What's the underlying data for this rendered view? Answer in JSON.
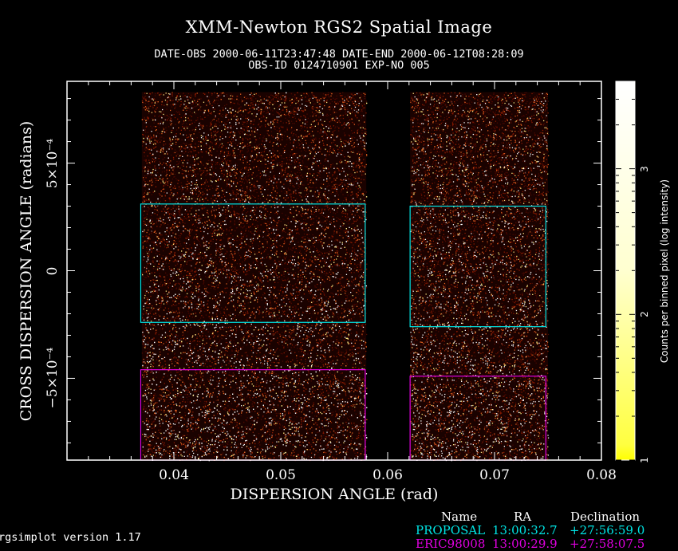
{
  "title": "XMM-Newton  RGS2 Spatial Image",
  "subtitle_line1": "DATE-OBS 2000-06-11T23:47:48   DATE-END 2000-06-12T08:28:09",
  "subtitle_line2": "OBS-ID 0124710901 EXP-NO 005",
  "version_text": "rgsimplot version 1.17",
  "chart_data": {
    "type": "heatmap",
    "title": "XMM-Newton  RGS2 Spatial Image",
    "xlabel": "DISPERSION ANGLE (rad)",
    "ylabel": "CROSS DISPERSION ANGLE (radians)",
    "xlim": [
      0.03,
      0.08
    ],
    "ylim": [
      -0.00088,
      0.00088
    ],
    "x_ticks": [
      {
        "value": 0.04,
        "label": "0.04"
      },
      {
        "value": 0.05,
        "label": "0.05"
      },
      {
        "value": 0.06,
        "label": "0.06"
      },
      {
        "value": 0.07,
        "label": "0.07"
      },
      {
        "value": 0.08,
        "label": "0.08"
      }
    ],
    "y_ticks": [
      {
        "value": -0.0005,
        "label": "−5×10⁻⁴"
      },
      {
        "value": 0,
        "label": "0"
      },
      {
        "value": 0.0005,
        "label": "5×10⁻⁴"
      }
    ],
    "data_coverage": [
      {
        "x_range": [
          0.037,
          0.058
        ],
        "y_range": [
          -0.00088,
          0.00083
        ]
      },
      {
        "x_range": [
          0.0621,
          0.075
        ],
        "y_range": [
          -0.00088,
          0.00083
        ]
      }
    ],
    "regions": [
      {
        "name": "PROPOSAL",
        "color": "#00e5e5",
        "boxes": [
          {
            "x_range": [
              0.0369,
              0.0579
            ],
            "y_range": [
              -0.00024,
              0.00031
            ]
          },
          {
            "x_range": [
              0.0621,
              0.0748
            ],
            "y_range": [
              -0.00026,
              0.0003
            ]
          }
        ]
      },
      {
        "name": "ERIC98008",
        "color": "#e000e0",
        "boxes": [
          {
            "x_range": [
              0.0369,
              0.0579
            ],
            "y_range": [
              -0.00088,
              -0.00046
            ]
          },
          {
            "x_range": [
              0.0621,
              0.0748
            ],
            "y_range": [
              -0.00088,
              -0.00049
            ]
          }
        ]
      }
    ],
    "colorbar": {
      "label": "Counts per binned pixel (log intensity)",
      "ticks": [
        {
          "value": 1,
          "label": "1"
        },
        {
          "value": 2,
          "label": "2"
        },
        {
          "value": 3,
          "label": "3"
        }
      ],
      "range": [
        1,
        3.6
      ],
      "colors": [
        "#000000",
        "#8b0000",
        "#e05020",
        "#ffd000",
        "#ffffff"
      ]
    }
  },
  "legend": {
    "headers": [
      "Name",
      "RA",
      "Declination"
    ],
    "rows": [
      {
        "name": "PROPOSAL",
        "ra": "13:00:32.7",
        "dec": "+27:56:59.0",
        "color": "#00e5e5"
      },
      {
        "name": "ERIC98008",
        "ra": "13:00:29.9",
        "dec": "+27:58:07.5",
        "color": "#e000e0"
      }
    ]
  }
}
